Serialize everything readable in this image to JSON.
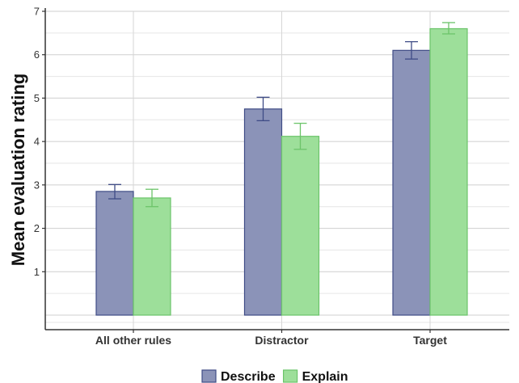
{
  "chart_data": {
    "type": "bar",
    "categories": [
      "All other rules",
      "Distractor",
      "Target"
    ],
    "ylabel": "Mean evaluation rating",
    "xlabel": "",
    "ylim": [
      0,
      7
    ],
    "yticks": [
      1,
      2,
      3,
      4,
      5,
      6,
      7
    ],
    "grid": true,
    "legend_position": "bottom",
    "series": [
      {
        "name": "Describe",
        "values": [
          2.85,
          4.75,
          6.1
        ],
        "error_low": [
          2.68,
          4.48,
          5.9
        ],
        "error_high": [
          3.01,
          5.02,
          6.3
        ],
        "fill": "#8b93b8",
        "stroke": "#3f4c86"
      },
      {
        "name": "Explain",
        "values": [
          2.7,
          4.12,
          6.6
        ],
        "error_low": [
          2.5,
          3.82,
          6.48
        ],
        "error_high": [
          2.9,
          4.42,
          6.74
        ],
        "fill": "#9ddf9a",
        "stroke": "#6cc46a"
      }
    ]
  }
}
